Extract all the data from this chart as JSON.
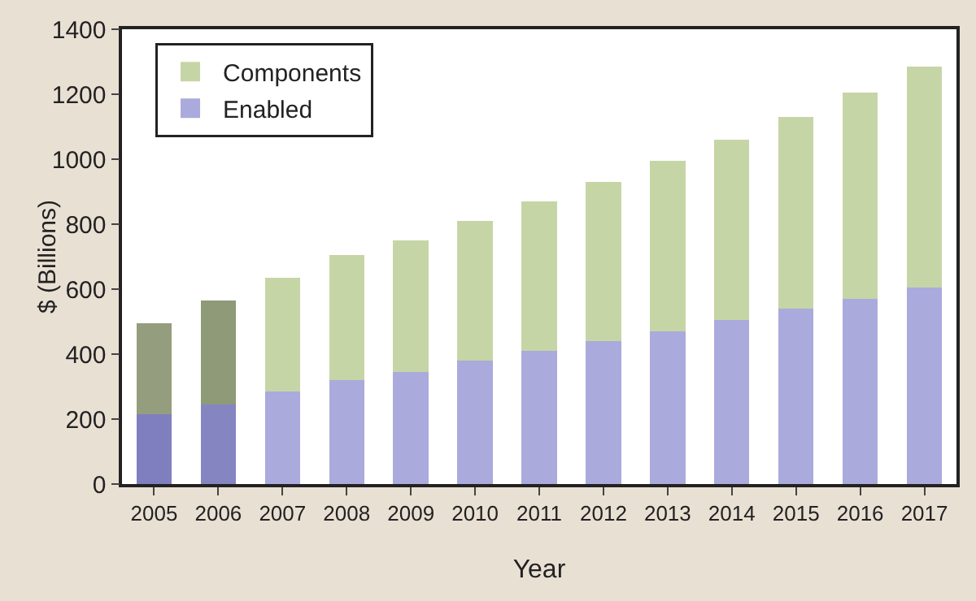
{
  "chart_data": {
    "type": "bar",
    "stacked": true,
    "xlabel": "Year",
    "ylabel": "$ (Billions)",
    "categories": [
      "2005",
      "2006",
      "2007",
      "2008",
      "2009",
      "2010",
      "2011",
      "2012",
      "2013",
      "2014",
      "2015",
      "2016",
      "2017"
    ],
    "series": [
      {
        "name": "Enabled",
        "color": "#aaaadd",
        "colors": [
          "#7f7fbf",
          "#8585c2",
          "#aaaadd",
          "#aaaadd",
          "#aaaadd",
          "#aaaadd",
          "#aaaadd",
          "#aaaadd",
          "#aaaadd",
          "#aaaadd",
          "#aaaadd",
          "#aaaadd",
          "#aaaadd"
        ],
        "values": [
          215,
          245,
          285,
          320,
          345,
          380,
          410,
          440,
          470,
          505,
          540,
          570,
          605
        ]
      },
      {
        "name": "Components",
        "color": "#c6d5a6",
        "colors": [
          "#949e7e",
          "#8f9a78",
          "#c6d5a6",
          "#c6d5a6",
          "#c6d5a6",
          "#c6d5a6",
          "#c6d5a6",
          "#c6d5a6",
          "#c6d5a6",
          "#c6d5a6",
          "#c6d5a6",
          "#c6d5a6",
          "#c6d5a6"
        ],
        "values": [
          280,
          320,
          350,
          385,
          405,
          430,
          460,
          490,
          525,
          555,
          590,
          635,
          680
        ]
      }
    ],
    "ylim": [
      0,
      1400
    ],
    "yticks": [
      0,
      200,
      400,
      600,
      800,
      1000,
      1200,
      1400
    ],
    "grid": false,
    "legend": "top left"
  }
}
